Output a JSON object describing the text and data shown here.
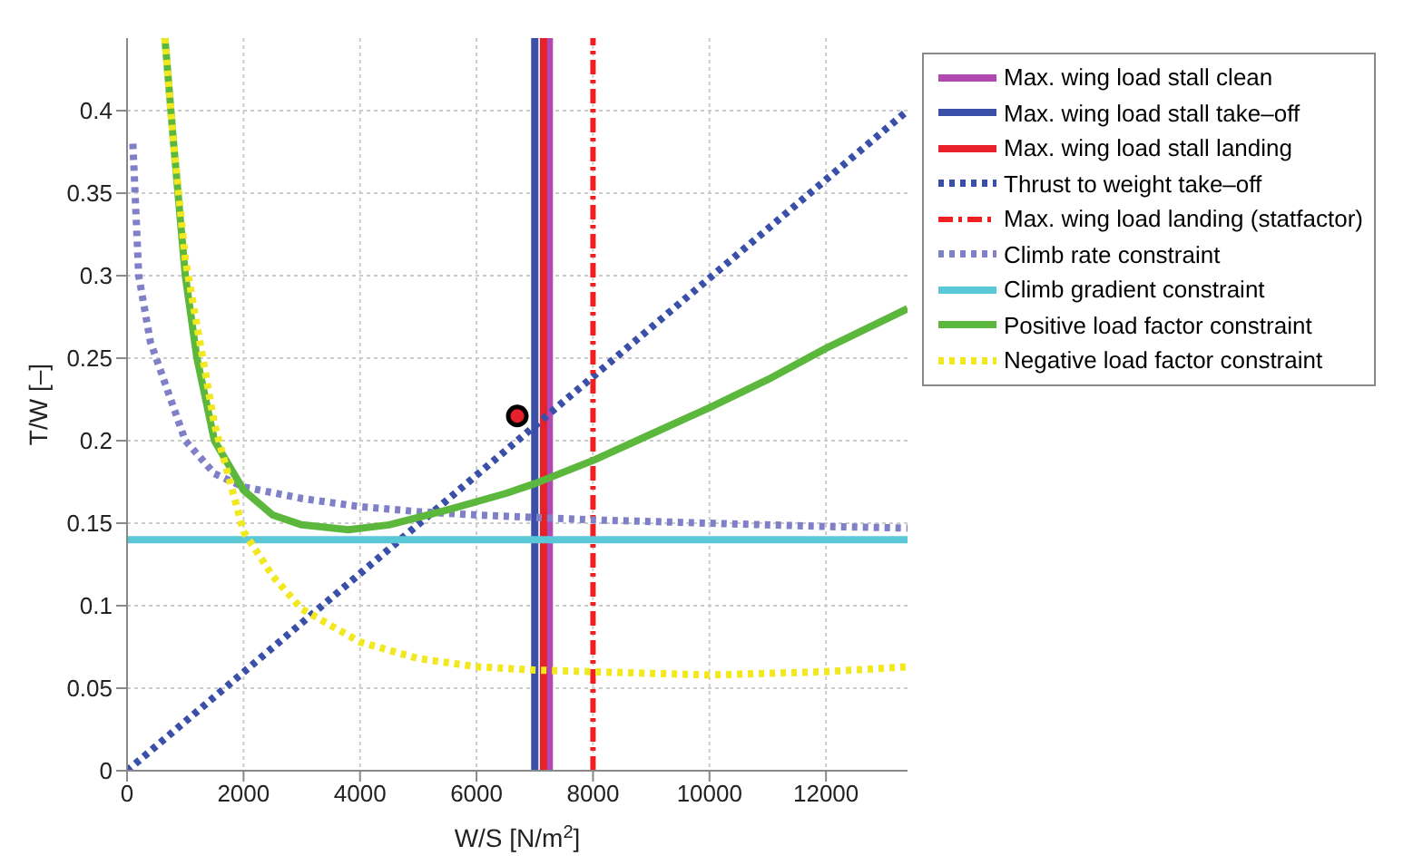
{
  "chart_data": {
    "type": "line",
    "xlabel": "W/S [N/m$^{2}$]",
    "ylabel": "T/W [–]",
    "xlim": [
      0,
      13400
    ],
    "ylim": [
      0,
      0.444
    ],
    "xticks": [
      0,
      2000,
      4000,
      6000,
      8000,
      10000,
      12000
    ],
    "yticks": [
      0,
      0.05,
      0.1,
      0.15,
      0.2,
      0.25,
      0.3,
      0.35,
      0.4
    ],
    "grid": true,
    "legend": "right",
    "series": [
      {
        "type": "scatter",
        "color": "#e8202a",
        "marker": "circle",
        "x": [
          6700
        ],
        "values": [
          0.215
        ]
      },
      {
        "name": "Max. wing load stall clean",
        "color": "#b04ab0",
        "line_style": "solid",
        "x": [
          7250,
          7250
        ],
        "values": [
          0,
          0.444
        ]
      },
      {
        "name": "Max. wing load stall take–off",
        "color": "#3a4fa8",
        "line_style": "solid",
        "x": [
          7000,
          7000
        ],
        "values": [
          0,
          0.444
        ]
      },
      {
        "name": "Max. wing load stall landing",
        "color": "#e8202a",
        "line_style": "solid",
        "x": [
          7150,
          7150
        ],
        "values": [
          0,
          0.444
        ]
      },
      {
        "name": "Thrust to weight take–off",
        "color": "#3a4fa8",
        "line_style": "dotted",
        "x": [
          0,
          13400
        ],
        "values": [
          0,
          0.4
        ]
      },
      {
        "name": "Max. wing load landing (statfactor)",
        "color": "#f02020",
        "line_style": "dashed",
        "x": [
          8000,
          8000
        ],
        "values": [
          0,
          0.444
        ]
      },
      {
        "name": "Climb rate constraint",
        "color": "#8080c8",
        "line_style": "dotted",
        "x": [
          100,
          200,
          400,
          700,
          1000,
          1500,
          2000,
          3000,
          4000,
          5000,
          6000,
          8000,
          10000,
          12000,
          13400
        ],
        "values": [
          0.38,
          0.3,
          0.26,
          0.23,
          0.2,
          0.18,
          0.172,
          0.165,
          0.16,
          0.157,
          0.155,
          0.152,
          0.15,
          0.148,
          0.147
        ]
      },
      {
        "name": "Climb gradient constraint",
        "color": "#5bc8d8",
        "line_style": "solid",
        "x": [
          0,
          13400
        ],
        "values": [
          0.14,
          0.14
        ]
      },
      {
        "name": "Positive load factor constraint",
        "color": "#5cb83c",
        "line_style": "solid",
        "x": [
          650,
          800,
          1000,
          1200,
          1500,
          2000,
          2500,
          3000,
          3800,
          4500,
          5500,
          6500,
          7000,
          8000,
          9000,
          10000,
          11000,
          12000,
          13400
        ],
        "values": [
          0.444,
          0.38,
          0.3,
          0.25,
          0.2,
          0.17,
          0.155,
          0.149,
          0.146,
          0.149,
          0.158,
          0.168,
          0.174,
          0.188,
          0.204,
          0.22,
          0.237,
          0.256,
          0.28
        ]
      },
      {
        "name": "Negative load factor constraint",
        "color": "#f2e820",
        "line_style": "dotted",
        "x": [
          650,
          800,
          1000,
          1500,
          2000,
          2500,
          3000,
          4000,
          5000,
          6000,
          7000,
          8000,
          9000,
          10000,
          11000,
          12000,
          13400
        ],
        "values": [
          0.444,
          0.38,
          0.31,
          0.21,
          0.145,
          0.118,
          0.098,
          0.078,
          0.068,
          0.063,
          0.061,
          0.06,
          0.059,
          0.058,
          0.059,
          0.06,
          0.063
        ]
      }
    ]
  }
}
